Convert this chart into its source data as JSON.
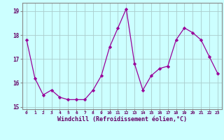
{
  "x": [
    0,
    1,
    2,
    3,
    4,
    5,
    6,
    7,
    8,
    9,
    10,
    11,
    12,
    13,
    14,
    15,
    16,
    17,
    18,
    19,
    20,
    21,
    22,
    23
  ],
  "y": [
    17.8,
    16.2,
    15.5,
    15.7,
    15.4,
    15.3,
    15.3,
    15.3,
    15.7,
    16.3,
    17.5,
    18.3,
    19.1,
    16.8,
    15.7,
    16.3,
    16.6,
    16.7,
    17.8,
    18.3,
    18.1,
    17.8,
    17.1,
    16.4
  ],
  "line_color": "#990099",
  "marker": "D",
  "marker_size": 2.2,
  "bg_color": "#ccffff",
  "grid_color": "#aacccc",
  "xlabel": "Windchill (Refroidissement éolien,°C)",
  "xlabel_color": "#660066",
  "tick_color": "#660066",
  "ylim": [
    14.9,
    19.35
  ],
  "yticks": [
    15,
    16,
    17,
    18,
    19
  ],
  "xlim": [
    -0.5,
    23.5
  ],
  "spine_color": "#888888",
  "xtick_fontsize": 4.5,
  "ytick_fontsize": 5.5,
  "xlabel_fontsize": 6.0
}
